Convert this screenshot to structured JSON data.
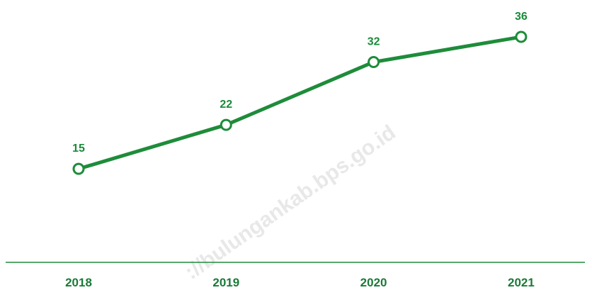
{
  "chart_data": {
    "type": "line",
    "categories": [
      "2018",
      "2019",
      "2020",
      "2021"
    ],
    "values": [
      15,
      22,
      32,
      36
    ],
    "color": "#1e8c3a",
    "watermark": "://bulungankab.bps.go.id"
  }
}
